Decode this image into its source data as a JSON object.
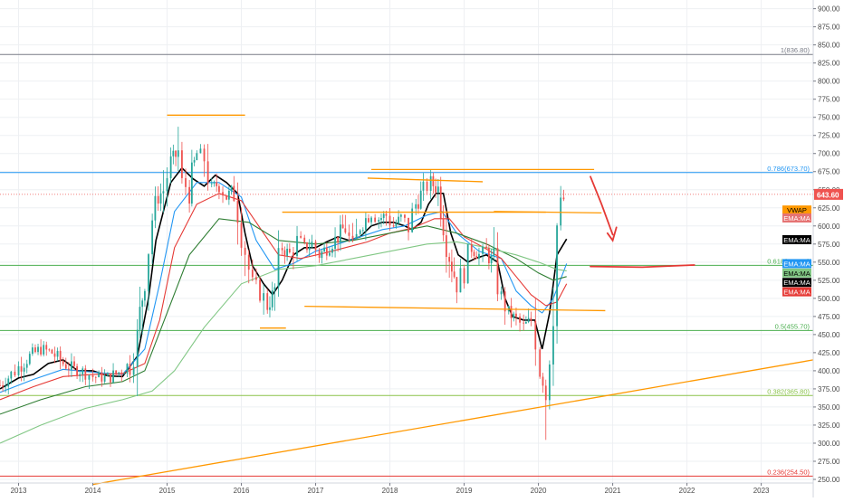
{
  "chart_data": {
    "type": "line",
    "subtype": "candlestick-price-chart",
    "title": "",
    "xlabel": "",
    "ylabel": "",
    "ylim": [
      245,
      912
    ],
    "xlim": [
      2012.75,
      2023.7
    ],
    "grid": true,
    "y_ticks": [
      250,
      275,
      300,
      325,
      350,
      375,
      400,
      425,
      450,
      475,
      500,
      525,
      550,
      575,
      600,
      625,
      650,
      675,
      700,
      725,
      750,
      775,
      800,
      825,
      850,
      875,
      900
    ],
    "x_ticks": [
      {
        "x": 2013,
        "label": "2013"
      },
      {
        "x": 2014,
        "label": "2014"
      },
      {
        "x": 2015,
        "label": "2015"
      },
      {
        "x": 2016,
        "label": "2016"
      },
      {
        "x": 2017,
        "label": "2017"
      },
      {
        "x": 2018,
        "label": "2018"
      },
      {
        "x": 2019,
        "label": "2019"
      },
      {
        "x": 2020,
        "label": "2020"
      },
      {
        "x": 2021,
        "label": "2021"
      },
      {
        "x": 2022,
        "label": "2022"
      },
      {
        "x": 2023,
        "label": "2023"
      }
    ],
    "last_price": {
      "value": 643.6,
      "label": "643.60",
      "color": "#ef5350"
    },
    "fib_levels": [
      {
        "ratio": "1",
        "value": 836.8,
        "label": "1(836.80)",
        "color": "#787b86"
      },
      {
        "ratio": "0.786",
        "value": 673.7,
        "label": "0.786(673.70)",
        "color": "#2196f3"
      },
      {
        "ratio": "0.618",
        "value": 545.5,
        "label": "0.618(545.50)",
        "color": "#4caf50"
      },
      {
        "ratio": "0.5",
        "value": 455.7,
        "label": "0.5(455.70)",
        "color": "#4caf50"
      },
      {
        "ratio": "0.382",
        "value": 365.8,
        "label": "0.382(365.80)",
        "color": "#8bc34a"
      },
      {
        "ratio": "0.236",
        "value": 254.5,
        "label": "0.236(254.50)",
        "color": "#e53935"
      }
    ],
    "trend_lines": [
      {
        "name": "",
        "color": "#ff9800",
        "x1": 2015.0,
        "y1": 753,
        "x2": 2016.05,
        "y2": 753
      },
      {
        "name": "",
        "color": "#ff9800",
        "x1": 2016.25,
        "y1": 459,
        "x2": 2016.6,
        "y2": 459
      },
      {
        "name": "",
        "color": "#ff9800",
        "x1": 2016.55,
        "y1": 619,
        "x2": 2020.1,
        "y2": 619
      },
      {
        "name": "",
        "color": "#ff9800",
        "x1": 2016.85,
        "y1": 489,
        "x2": 2020.9,
        "y2": 483
      },
      {
        "name": "",
        "color": "#ff9800",
        "x1": 2017.7,
        "y1": 666,
        "x2": 2019.25,
        "y2": 661
      },
      {
        "name": "",
        "color": "#ff9800",
        "x1": 2017.75,
        "y1": 678,
        "x2": 2020.75,
        "y2": 678
      },
      {
        "name": "",
        "color": "#ff9800",
        "x1": 2019.4,
        "y1": 620,
        "x2": 2020.85,
        "y2": 618
      },
      {
        "name": "",
        "color": "#ff9800",
        "x1": 2014.0,
        "y1": 243,
        "x2": 2023.7,
        "y2": 415
      }
    ],
    "annotations": [
      {
        "type": "freehand-arrow",
        "color": "#e53935",
        "points": [
          [
            2020.7,
            668
          ],
          [
            2020.85,
            630
          ],
          [
            2021.0,
            588
          ]
        ],
        "head": [
          [
            2020.93,
            590
          ],
          [
            2021.0,
            580
          ],
          [
            2021.05,
            598
          ]
        ]
      },
      {
        "type": "freehand-line",
        "color": "#e53935",
        "points": [
          [
            2020.7,
            544
          ],
          [
            2021.4,
            543
          ],
          [
            2022.1,
            546
          ]
        ]
      }
    ],
    "series": [
      {
        "name": "",
        "kind": "candles",
        "up_color": "#26a69a",
        "down_color": "#ef5350",
        "x": [
          2012.75,
          2012.9,
          2013.0,
          2013.15,
          2013.3,
          2013.45,
          2013.6,
          2013.75,
          2013.9,
          2014.0,
          2014.2,
          2014.35,
          2014.5,
          2014.6,
          2014.7,
          2014.8,
          2014.88,
          2014.95,
          2015.05,
          2015.15,
          2015.2,
          2015.3,
          2015.4,
          2015.5,
          2015.6,
          2015.7,
          2015.8,
          2015.9,
          2016.0,
          2016.1,
          2016.15,
          2016.25,
          2016.35,
          2016.45,
          2016.55,
          2016.65,
          2016.75,
          2016.85,
          2016.95,
          2017.05,
          2017.15,
          2017.3,
          2017.4,
          2017.5,
          2017.6,
          2017.75,
          2017.85,
          2017.95,
          2018.05,
          2018.15,
          2018.25,
          2018.35,
          2018.45,
          2018.55,
          2018.65,
          2018.72,
          2018.8,
          2018.9,
          2019.0,
          2019.1,
          2019.2,
          2019.3,
          2019.4,
          2019.5,
          2019.6,
          2019.7,
          2019.8,
          2019.9,
          2019.96,
          2020.02,
          2020.1,
          2020.15,
          2020.2,
          2020.25,
          2020.3,
          2020.38
        ],
        "close": [
          380,
          395,
          405,
          420,
          430,
          425,
          410,
          402,
          398,
          392,
          390,
          398,
          410,
          440,
          540,
          610,
          640,
          650,
          690,
          700,
          660,
          650,
          700,
          695,
          650,
          660,
          640,
          650,
          600,
          540,
          520,
          510,
          490,
          510,
          570,
          560,
          580,
          570,
          575,
          560,
          570,
          585,
          600,
          560,
          600,
          620,
          610,
          615,
          600,
          610,
          600,
          630,
          650,
          660,
          650,
          610,
          560,
          520,
          540,
          570,
          560,
          565,
          545,
          500,
          480,
          470,
          460,
          470,
          480,
          400,
          380,
          450,
          520,
          600,
          630,
          643.6
        ]
      },
      {
        "name": "EMA:MA",
        "kind": "line",
        "color": "#000000",
        "x": [
          2012.75,
          2013.0,
          2013.2,
          2013.4,
          2013.6,
          2013.8,
          2014.0,
          2014.2,
          2014.4,
          2014.6,
          2014.75,
          2014.85,
          2014.95,
          2015.05,
          2015.2,
          2015.35,
          2015.5,
          2015.65,
          2015.8,
          2015.95,
          2016.05,
          2016.15,
          2016.3,
          2016.42,
          2016.55,
          2016.7,
          2016.85,
          2017.0,
          2017.15,
          2017.3,
          2017.45,
          2017.6,
          2017.75,
          2017.9,
          2018.05,
          2018.2,
          2018.3,
          2018.42,
          2018.52,
          2018.62,
          2018.72,
          2018.82,
          2018.92,
          2019.05,
          2019.15,
          2019.3,
          2019.45,
          2019.55,
          2019.65,
          2019.8,
          2019.95,
          2020.05,
          2020.15,
          2020.25,
          2020.38
        ],
        "values": [
          375,
          390,
          395,
          410,
          415,
          400,
          400,
          393,
          392,
          420,
          500,
          580,
          620,
          660,
          680,
          665,
          655,
          670,
          660,
          645,
          590,
          545,
          520,
          505,
          525,
          560,
          570,
          570,
          578,
          585,
          580,
          585,
          600,
          605,
          605,
          600,
          595,
          605,
          630,
          645,
          645,
          590,
          560,
          550,
          555,
          560,
          550,
          500,
          475,
          470,
          470,
          430,
          480,
          560,
          582
        ]
      },
      {
        "name": "EMA:MA",
        "kind": "line",
        "color": "#2196f3",
        "x": [
          2012.75,
          2013.2,
          2013.6,
          2014.0,
          2014.4,
          2014.7,
          2014.9,
          2015.1,
          2015.4,
          2015.7,
          2016.0,
          2016.2,
          2016.45,
          2016.7,
          2017.0,
          2017.3,
          2017.6,
          2017.9,
          2018.2,
          2018.5,
          2018.7,
          2018.9,
          2019.2,
          2019.5,
          2019.7,
          2019.9,
          2020.05,
          2020.2,
          2020.38
        ],
        "values": [
          370,
          388,
          402,
          398,
          395,
          430,
          520,
          620,
          660,
          660,
          640,
          580,
          540,
          548,
          565,
          575,
          585,
          595,
          600,
          615,
          620,
          590,
          565,
          555,
          510,
          490,
          480,
          500,
          548
        ]
      },
      {
        "name": "EMA:MA",
        "kind": "line",
        "color": "#e53935",
        "x": [
          2012.75,
          2013.2,
          2013.6,
          2014.0,
          2014.4,
          2014.7,
          2014.9,
          2015.1,
          2015.4,
          2015.7,
          2016.0,
          2016.3,
          2016.5,
          2016.8,
          2017.1,
          2017.4,
          2017.7,
          2018.0,
          2018.3,
          2018.6,
          2018.8,
          2019.0,
          2019.3,
          2019.5,
          2019.7,
          2019.9,
          2020.1,
          2020.25,
          2020.38
        ],
        "values": [
          360,
          378,
          392,
          395,
          396,
          410,
          470,
          570,
          630,
          645,
          635,
          590,
          560,
          555,
          562,
          570,
          578,
          590,
          597,
          610,
          610,
          585,
          568,
          555,
          530,
          505,
          490,
          495,
          520
        ]
      },
      {
        "name": "EMA:MA",
        "kind": "line",
        "color": "#2e7d32",
        "x": [
          2012.75,
          2013.3,
          2013.9,
          2014.4,
          2014.7,
          2015.0,
          2015.3,
          2015.7,
          2016.1,
          2016.5,
          2017.0,
          2017.5,
          2018.0,
          2018.5,
          2018.9,
          2019.3,
          2019.7,
          2020.0,
          2020.2,
          2020.38
        ],
        "values": [
          340,
          360,
          378,
          385,
          400,
          480,
          560,
          610,
          605,
          580,
          575,
          580,
          590,
          600,
          590,
          575,
          555,
          535,
          525,
          530
        ]
      },
      {
        "name": "EMA:MA",
        "kind": "line",
        "color": "#81c784",
        "x": [
          2012.75,
          2013.3,
          2013.9,
          2014.4,
          2014.8,
          2015.1,
          2015.5,
          2016.0,
          2016.5,
          2017.0,
          2017.5,
          2018.0,
          2018.5,
          2018.9,
          2019.3,
          2019.7,
          2020.0,
          2020.25,
          2020.38
        ],
        "values": [
          300,
          325,
          348,
          360,
          372,
          400,
          460,
          520,
          540,
          545,
          555,
          565,
          575,
          578,
          570,
          560,
          550,
          540,
          538
        ]
      }
    ],
    "right_labels": [
      {
        "label": "VWAP",
        "value": 622,
        "bg": "#ff9800",
        "fg": "#000000"
      },
      {
        "label": "EMA:MA",
        "value": 611,
        "bg": "#e57373",
        "fg": "#ffffff"
      },
      {
        "label": "EMA:MA",
        "value": 581,
        "bg": "#000000",
        "fg": "#ffffff"
      },
      {
        "label": "EMA:MA",
        "value": 548,
        "bg": "#2196f3",
        "fg": "#ffffff"
      },
      {
        "label": "EMA:MA",
        "value": 535,
        "bg": "#81c784",
        "fg": "#000000"
      },
      {
        "label": "EMA:MA",
        "value": 522,
        "bg": "#000000",
        "fg": "#ffffff"
      },
      {
        "label": "EMA:MA",
        "value": 509,
        "bg": "#e53935",
        "fg": "#ffffff"
      }
    ]
  }
}
